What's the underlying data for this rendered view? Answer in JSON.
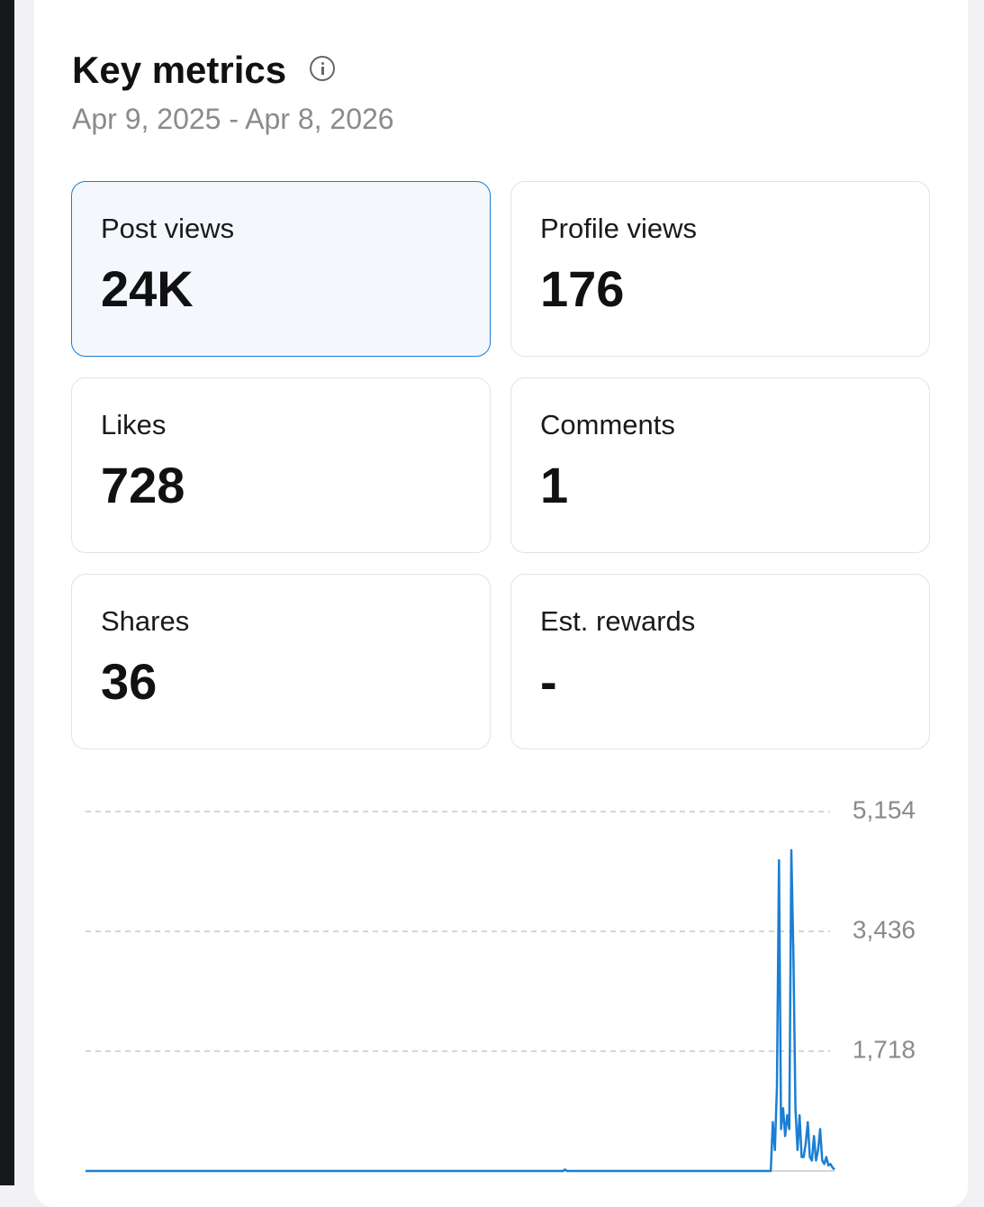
{
  "header": {
    "title": "Key metrics",
    "date_range": "Apr 9, 2025 - Apr 8, 2026"
  },
  "metrics": [
    {
      "label": "Post views",
      "value": "24K"
    },
    {
      "label": "Profile views",
      "value": "176"
    },
    {
      "label": "Likes",
      "value": "728"
    },
    {
      "label": "Comments",
      "value": "1"
    },
    {
      "label": "Shares",
      "value": "36"
    },
    {
      "label": "Est. rewards",
      "value": "-"
    }
  ],
  "chart_data": {
    "type": "line",
    "color": "#1a7fd4",
    "grid": true,
    "ylim": [
      0,
      5154
    ],
    "yticks": [
      {
        "value": 1718,
        "label": "1,718"
      },
      {
        "value": 3436,
        "label": "3,436"
      },
      {
        "value": 5154,
        "label": "5,154"
      }
    ],
    "values": [
      0,
      0,
      0,
      0,
      0,
      0,
      0,
      0,
      0,
      0,
      0,
      0,
      0,
      0,
      0,
      0,
      0,
      0,
      0,
      0,
      0,
      0,
      0,
      0,
      0,
      0,
      0,
      0,
      0,
      0,
      0,
      0,
      0,
      0,
      0,
      0,
      0,
      0,
      0,
      0,
      0,
      0,
      0,
      0,
      0,
      0,
      0,
      0,
      0,
      0,
      0,
      0,
      0,
      0,
      0,
      0,
      0,
      0,
      0,
      0,
      0,
      0,
      0,
      0,
      0,
      0,
      0,
      0,
      0,
      0,
      0,
      0,
      0,
      0,
      0,
      0,
      0,
      0,
      0,
      0,
      0,
      0,
      0,
      0,
      0,
      0,
      0,
      0,
      0,
      0,
      0,
      0,
      0,
      0,
      0,
      0,
      0,
      0,
      0,
      0,
      0,
      0,
      0,
      0,
      0,
      0,
      0,
      0,
      0,
      0,
      0,
      0,
      0,
      0,
      0,
      0,
      0,
      0,
      0,
      0,
      0,
      0,
      0,
      0,
      0,
      0,
      0,
      0,
      0,
      0,
      0,
      0,
      0,
      0,
      0,
      0,
      0,
      0,
      0,
      0,
      0,
      0,
      0,
      0,
      0,
      0,
      0,
      0,
      0,
      0,
      0,
      0,
      0,
      0,
      0,
      0,
      0,
      0,
      0,
      0,
      0,
      0,
      0,
      0,
      0,
      0,
      0,
      0,
      0,
      0,
      0,
      0,
      0,
      0,
      0,
      0,
      0,
      0,
      0,
      0,
      0,
      0,
      0,
      0,
      0,
      0,
      0,
      0,
      0,
      0,
      0,
      0,
      0,
      0,
      0,
      0,
      0,
      0,
      0,
      0,
      0,
      0,
      0,
      0,
      0,
      0,
      0,
      0,
      0,
      0,
      0,
      0,
      0,
      0,
      0,
      0,
      0,
      0,
      0,
      0,
      0,
      0,
      0,
      0,
      0,
      0,
      0,
      0,
      0,
      0,
      0,
      0,
      0,
      20,
      0,
      0,
      0,
      0,
      0,
      0,
      0,
      0,
      0,
      0,
      0,
      0,
      0,
      0,
      0,
      0,
      0,
      0,
      0,
      0,
      0,
      0,
      0,
      0,
      0,
      0,
      0,
      0,
      0,
      0,
      0,
      0,
      0,
      0,
      0,
      0,
      0,
      0,
      0,
      0,
      0,
      0,
      0,
      0,
      0,
      0,
      0,
      0,
      0,
      0,
      0,
      0,
      0,
      0,
      0,
      0,
      0,
      0,
      0,
      0,
      0,
      0,
      0,
      0,
      0,
      0,
      0,
      0,
      0,
      0,
      0,
      0,
      0,
      0,
      0,
      0,
      0,
      0,
      0,
      0,
      0,
      0,
      0,
      0,
      0,
      0,
      0,
      0,
      0,
      0,
      0,
      0,
      0,
      0,
      0,
      0,
      0,
      0,
      0,
      0,
      700,
      300,
      1200,
      4456,
      600,
      900,
      500,
      800,
      600,
      4600,
      3100,
      900,
      300,
      800,
      200,
      200,
      400,
      700,
      200,
      150,
      500,
      150,
      300,
      600,
      150,
      100,
      200,
      80,
      100,
      50,
      20
    ]
  }
}
